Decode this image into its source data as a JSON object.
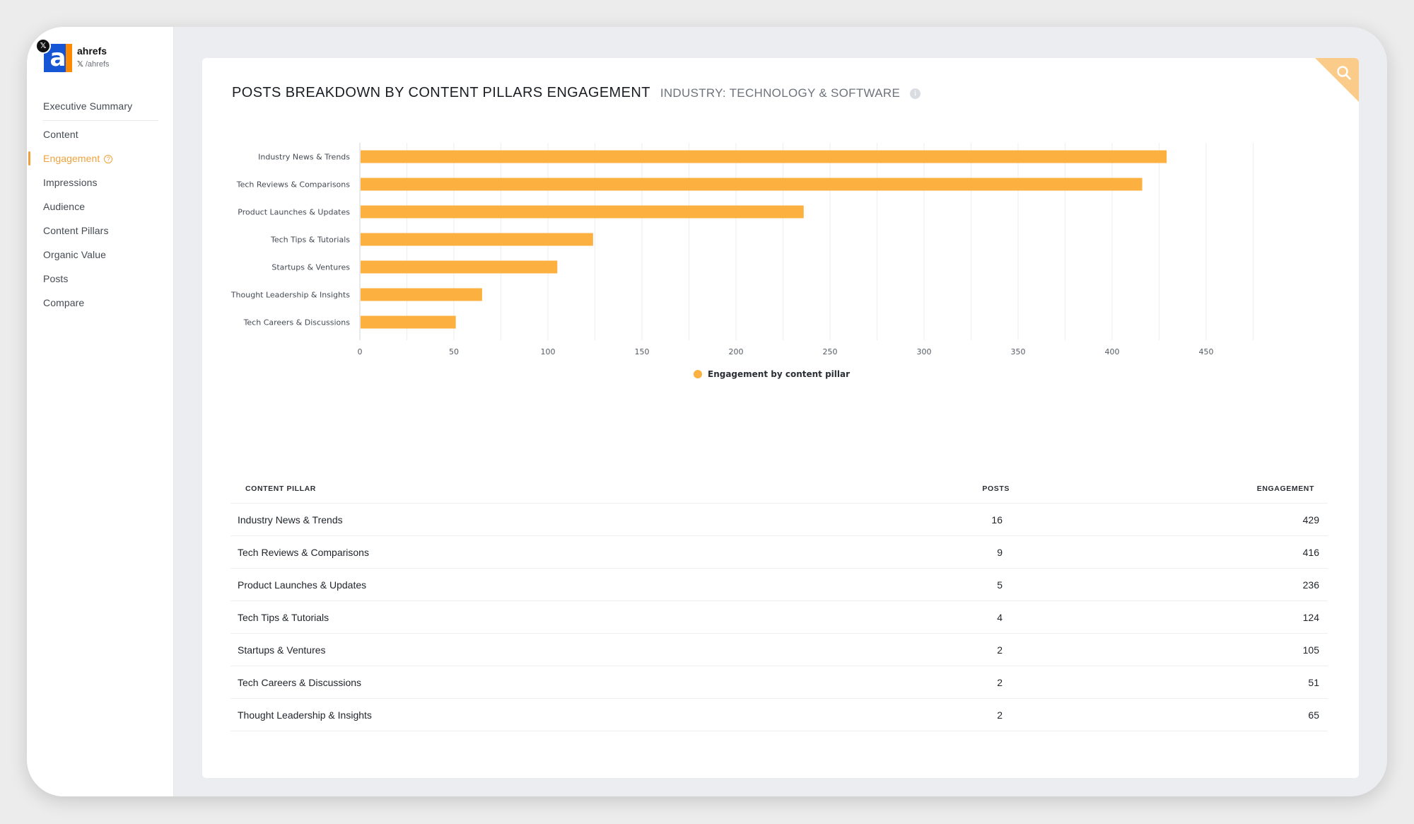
{
  "brand": {
    "x_badge": "𝕏",
    "name": "ahrefs",
    "handle_icon": "𝕏",
    "handle": "/ahrefs",
    "logo_letter": "a"
  },
  "nav": {
    "items": [
      {
        "label": "Executive Summary"
      },
      {
        "label": "Content"
      },
      {
        "label": "Engagement"
      },
      {
        "label": "Impressions"
      },
      {
        "label": "Audience"
      },
      {
        "label": "Content Pillars"
      },
      {
        "label": "Organic Value"
      },
      {
        "label": "Posts"
      },
      {
        "label": "Compare"
      }
    ],
    "active": "Engagement",
    "help_icon": "?"
  },
  "header": {
    "title": "POSTS BREAKDOWN BY CONTENT PILLARS ENGAGEMENT",
    "subtitle": "INDUSTRY: TECHNOLOGY & SOFTWARE",
    "info_icon": "i"
  },
  "colors": {
    "accent": "#f1a13b",
    "bar": "#fbb040",
    "brand_blue": "#1655d3"
  },
  "chart_data": {
    "type": "bar",
    "orientation": "horizontal",
    "categories": [
      "Industry News & Trends",
      "Tech Reviews & Comparisons",
      "Product Launches & Updates",
      "Tech Tips & Tutorials",
      "Startups & Ventures",
      "Thought Leadership & Insights",
      "Tech Careers & Discussions"
    ],
    "series": [
      {
        "name": "Engagement by content pillar",
        "values": [
          429,
          416,
          236,
          124,
          105,
          65,
          51
        ]
      }
    ],
    "x_ticks": [
      0,
      50,
      100,
      150,
      200,
      250,
      300,
      350,
      400,
      450
    ],
    "xlim": [
      0,
      475
    ],
    "grid": true,
    "legend": "bottom-center"
  },
  "table": {
    "headers": {
      "pillar": "CONTENT PILLAR",
      "posts": "POSTS",
      "engagement": "ENGAGEMENT"
    },
    "rows": [
      {
        "pillar": "Industry News & Trends",
        "posts": "16",
        "engagement": "429"
      },
      {
        "pillar": "Tech Reviews & Comparisons",
        "posts": "9",
        "engagement": "416"
      },
      {
        "pillar": "Product Launches & Updates",
        "posts": "5",
        "engagement": "236"
      },
      {
        "pillar": "Tech Tips & Tutorials",
        "posts": "4",
        "engagement": "124"
      },
      {
        "pillar": "Startups & Ventures",
        "posts": "2",
        "engagement": "105"
      },
      {
        "pillar": "Tech Careers & Discussions",
        "posts": "2",
        "engagement": "51"
      },
      {
        "pillar": "Thought Leadership & Insights",
        "posts": "2",
        "engagement": "65"
      }
    ]
  }
}
